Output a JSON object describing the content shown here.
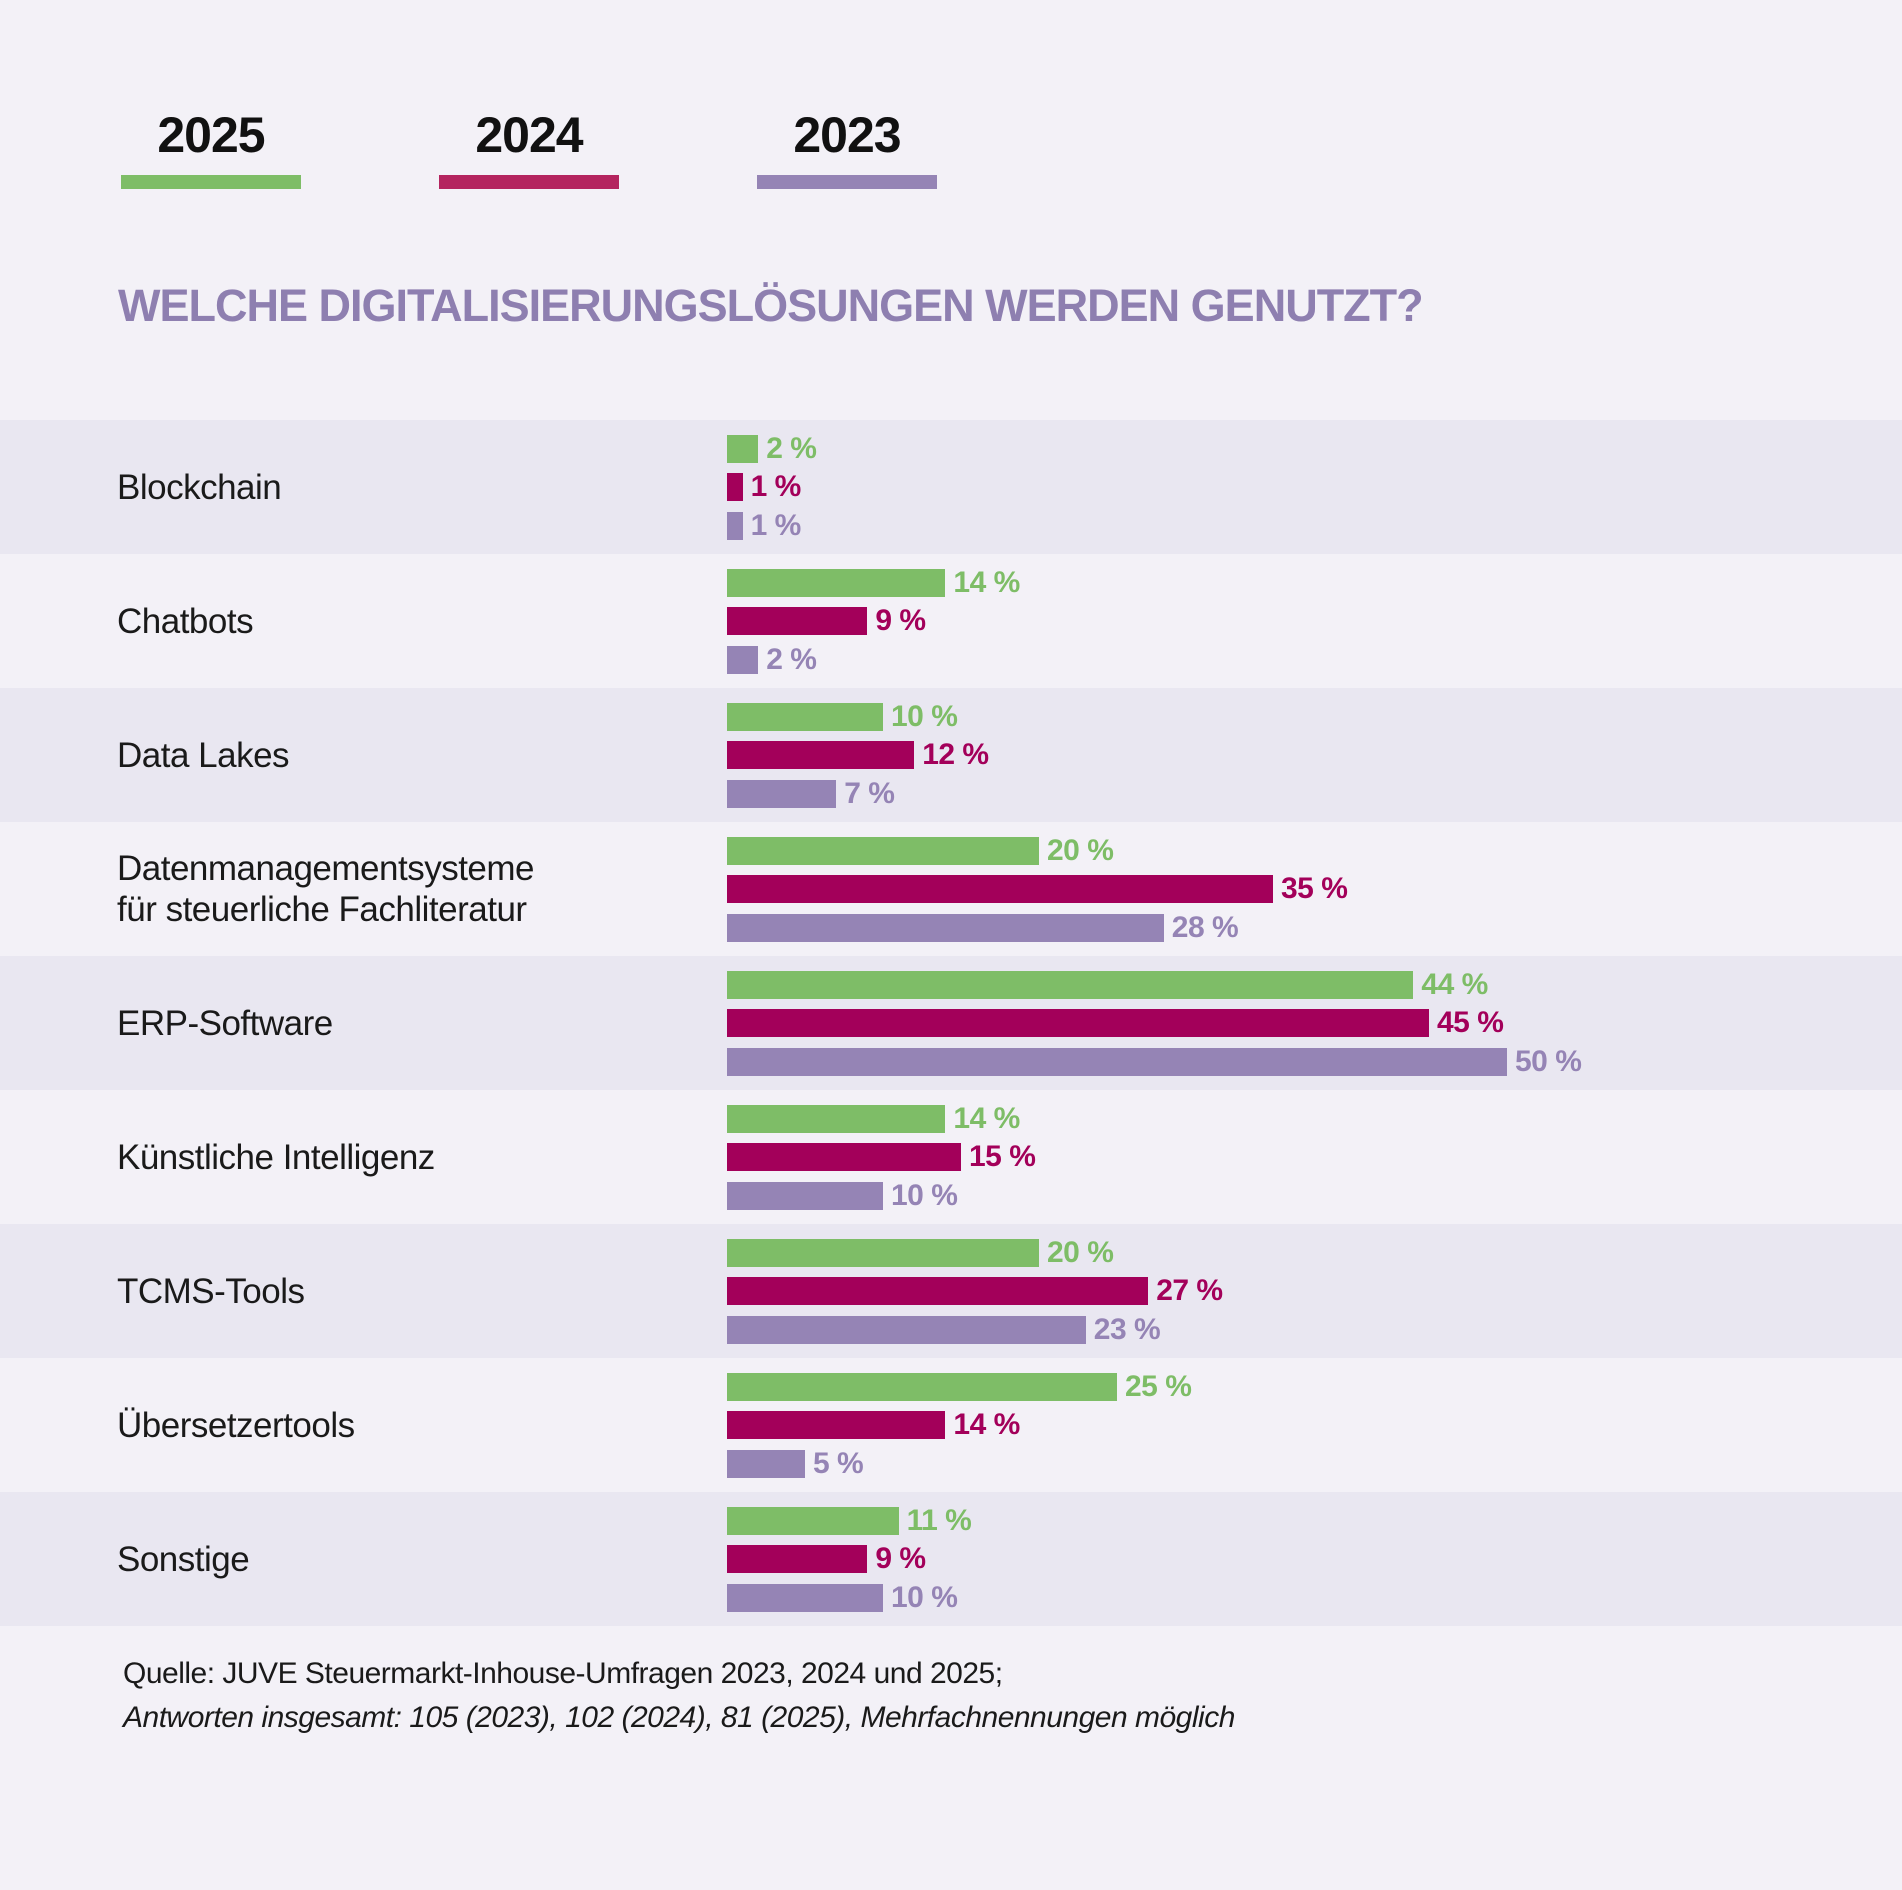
{
  "legend": {
    "items": [
      {
        "label": "2025",
        "color": "#7ebd67"
      },
      {
        "label": "2024",
        "color": "#b4245f"
      },
      {
        "label": "2023",
        "color": "#9584b5"
      }
    ]
  },
  "title": "WELCHE DIGITALISIERUNGSLÖSUNGEN WERDEN GENUTZT?",
  "chart_data": {
    "type": "bar",
    "orientation": "horizontal",
    "title": "WELCHE DIGITALISIERUNGSLÖSUNGEN WERDEN GENUTZT?",
    "unit": "%",
    "categories": [
      "Blockchain",
      "Chatbots",
      "Data Lakes",
      "Datenmanagementsysteme\nfür steuerliche Fachliteratur",
      "ERP-Software",
      "Künstliche Intelligenz",
      "TCMS-Tools",
      "Übersetzertools",
      "Sonstige"
    ],
    "series": [
      {
        "name": "2025",
        "color": "#7ebd67",
        "label_color": "#7ebd67",
        "values": [
          2,
          14,
          10,
          20,
          44,
          14,
          20,
          25,
          11
        ],
        "labels": [
          "2 %",
          "14 %",
          "10 %",
          "20 %",
          "44 %",
          "14 %",
          "20 %",
          "25 %",
          "11 %"
        ]
      },
      {
        "name": "2024",
        "color": "#a3005a",
        "label_color": "#a3005a",
        "values": [
          1,
          9,
          12,
          35,
          45,
          15,
          27,
          14,
          9
        ],
        "labels": [
          "1 %",
          "9 %",
          "12 %",
          "35 %",
          "45 %",
          "15 %",
          "27 %",
          "14 %",
          "9 %"
        ]
      },
      {
        "name": "2023",
        "color": "#9584b5",
        "label_color": "#9584b5",
        "values": [
          1,
          2,
          7,
          28,
          50,
          10,
          23,
          5,
          10
        ],
        "labels": [
          "1 %",
          "2 %",
          "7 %",
          "28 %",
          "50 %",
          "10 %",
          "23 %",
          "5 %",
          "10 %"
        ]
      }
    ],
    "xlim": [
      0,
      50
    ],
    "legend_position": "top-left",
    "grid": false,
    "row_shading": "alternating"
  },
  "source": {
    "line1": "Quelle: JUVE Steuermarkt-Inhouse-Umfragen 2023, 2024 und 2025;",
    "line2": "Antworten insgesamt: 105 (2023), 102 (2024), 81 (2025), Mehrfachnennungen möglich"
  }
}
